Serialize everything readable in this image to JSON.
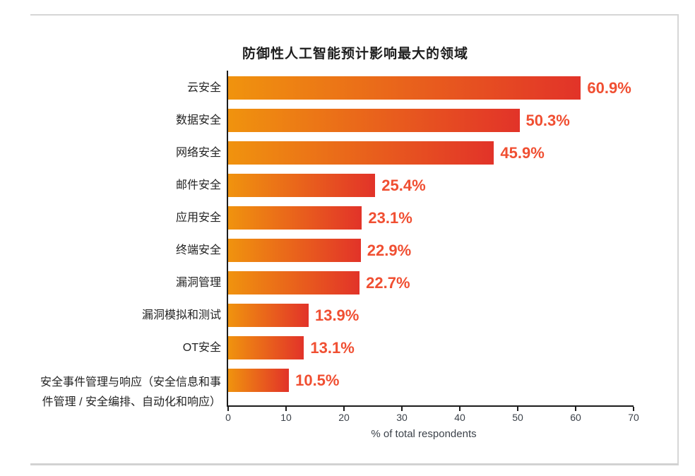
{
  "frame": {
    "border_color": "#d6d6d6"
  },
  "chart_data": {
    "type": "bar",
    "orientation": "horizontal",
    "title": "防御性人工智能预计影响最大的领域",
    "xlabel": "% of total respondents",
    "xlim": [
      0,
      70
    ],
    "x_ticks": [
      0,
      10,
      20,
      30,
      40,
      50,
      60,
      70
    ],
    "grid": false,
    "legend": false,
    "categories": [
      "云安全",
      "数据安全",
      "网络安全",
      "邮件安全",
      "应用安全",
      "终端安全",
      "漏洞管理",
      "漏洞模拟和测试",
      "OT安全",
      "安全事件管理与响应（安全信息和事\n件管理 / 安全编排、自动化和响应）"
    ],
    "values": [
      60.9,
      50.3,
      45.9,
      25.4,
      23.1,
      22.9,
      22.7,
      13.9,
      13.1,
      10.5
    ],
    "value_labels": [
      "60.9%",
      "50.3%",
      "45.9%",
      "25.4%",
      "23.1%",
      "22.9%",
      "22.7%",
      "13.9%",
      "13.1%",
      "10.5%"
    ],
    "colors": {
      "bar_gradient_start": "#f0930e",
      "bar_gradient_end": "#e23329",
      "value_label": "#f04f32",
      "axis_line": "#1c1c1c",
      "tick_label": "#3c424a",
      "category_label": "#232323",
      "title": "#1e1e1e"
    }
  }
}
